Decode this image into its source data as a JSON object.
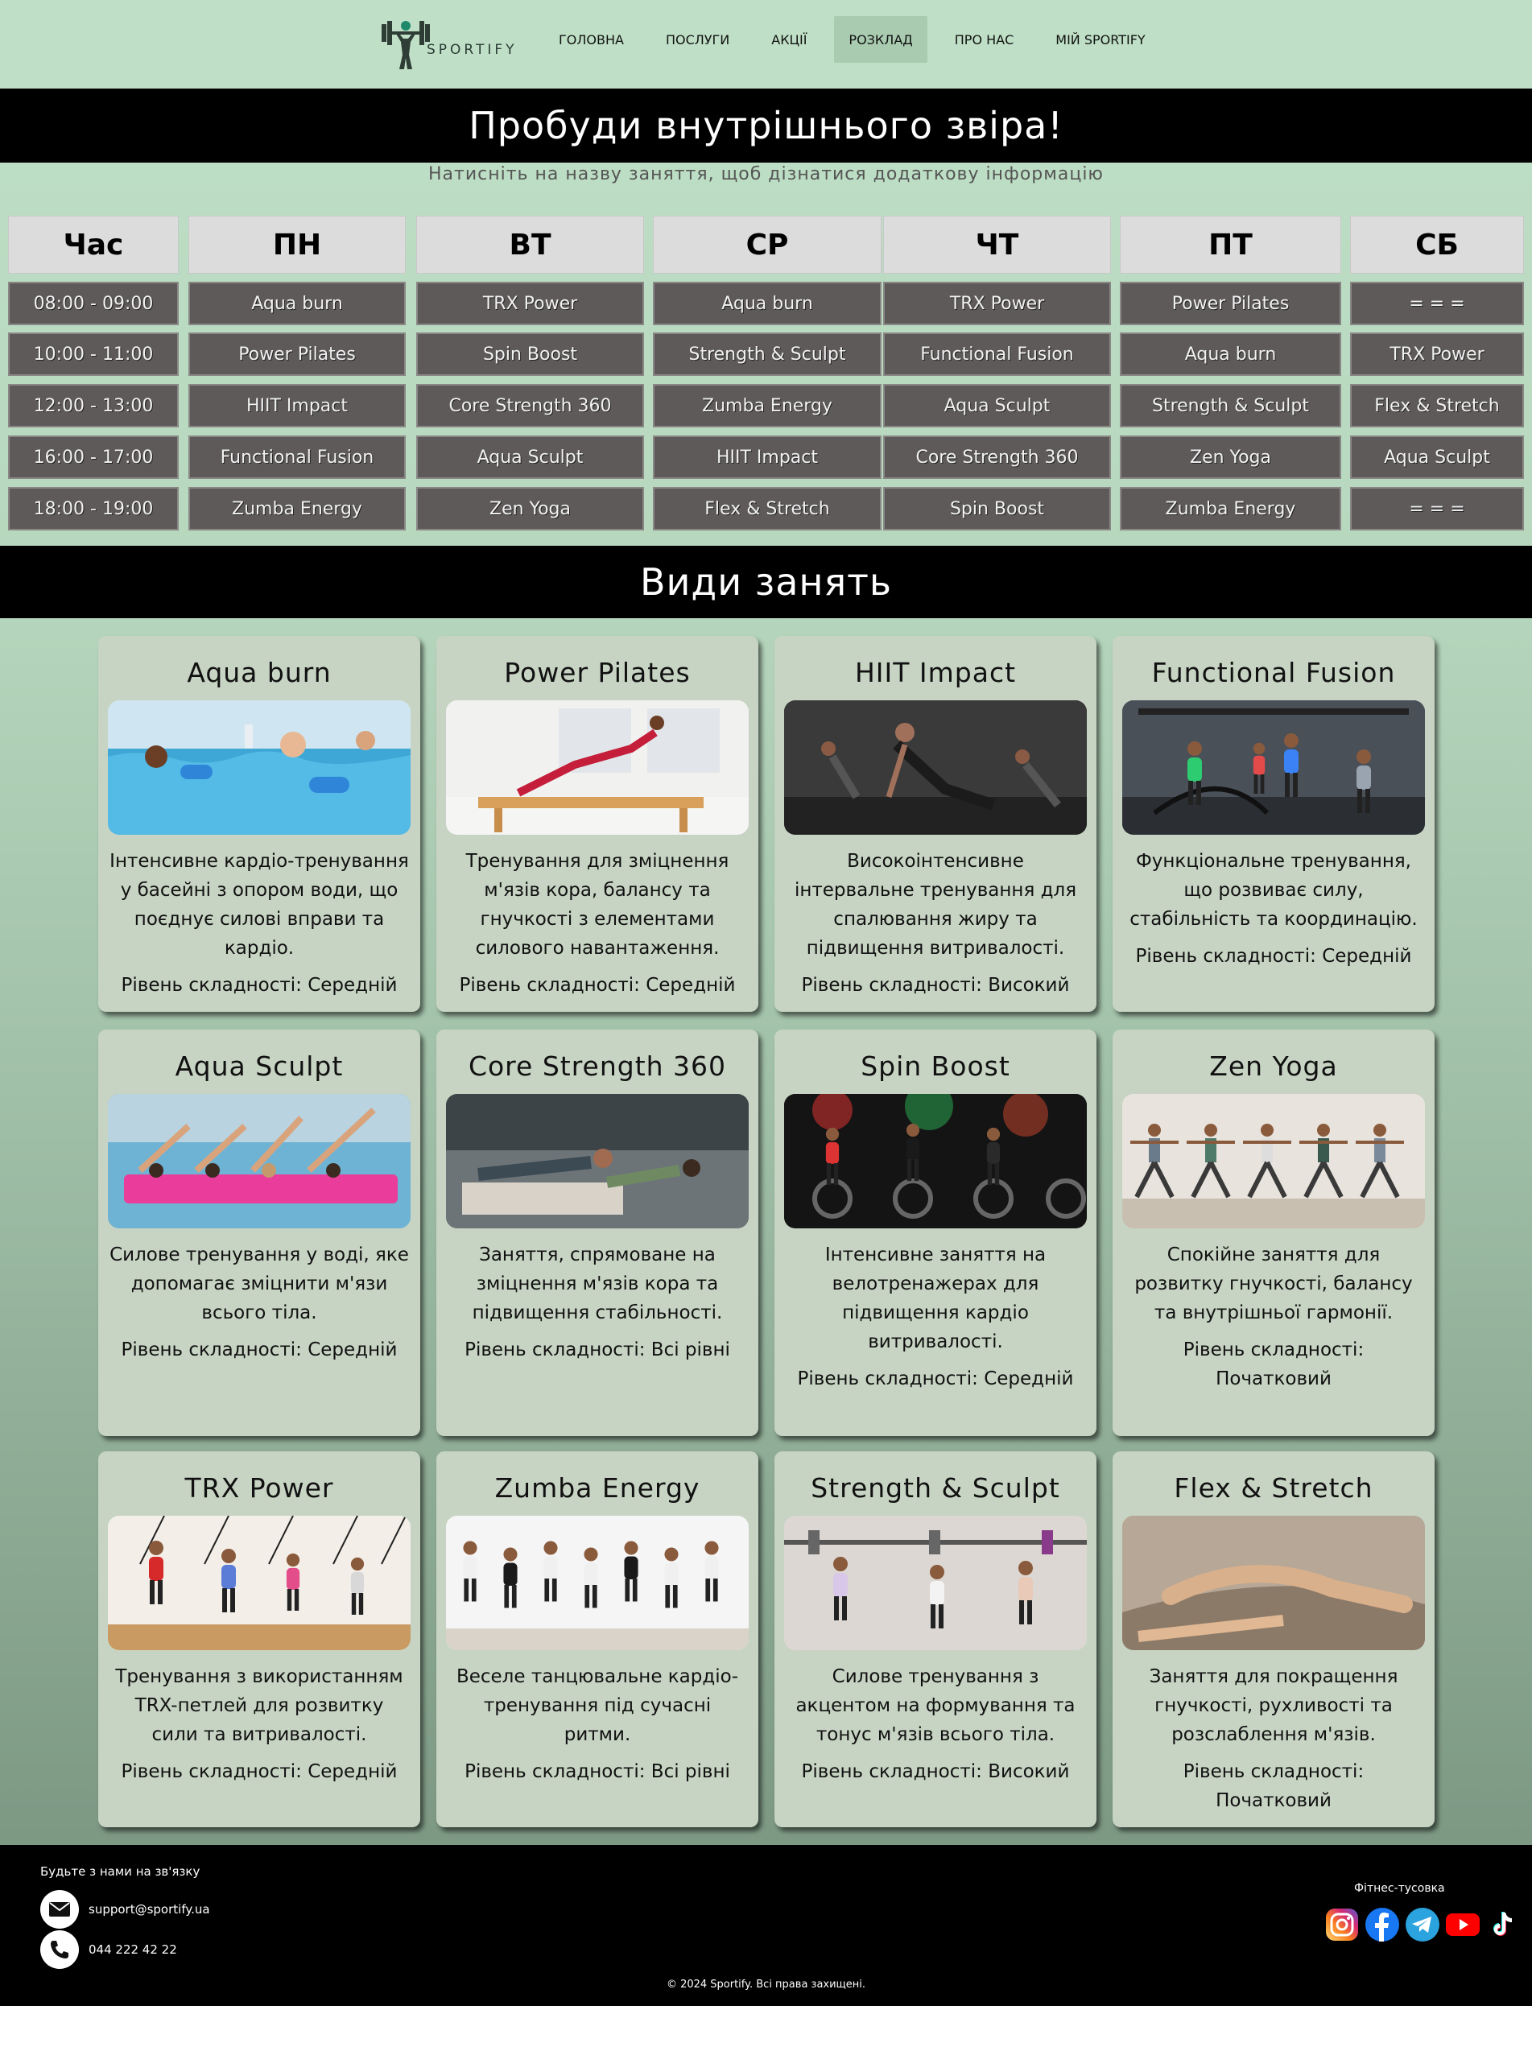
{
  "brand": {
    "name": "SPORTIFY"
  },
  "nav": {
    "items": [
      {
        "label": "ГОЛОВНА",
        "active": false
      },
      {
        "label": "ПОСЛУГИ",
        "active": false
      },
      {
        "label": "АКЦІЇ",
        "active": false
      },
      {
        "label": "РОЗКЛАД",
        "active": true
      },
      {
        "label": "ПРО НАС",
        "active": false
      },
      {
        "label": "МІЙ SPORTIFY",
        "active": false
      }
    ]
  },
  "hero": {
    "title": "Пробуди внутрішнього звіра!",
    "subtitle": "Натисніть на назву заняття, щоб дізнатися додаткову інформацію"
  },
  "schedule": {
    "headers": [
      "Час",
      "ПН",
      "ВТ",
      "СР",
      "ЧТ",
      "ПТ",
      "СБ"
    ],
    "rows": [
      [
        "08:00 - 09:00",
        "Aqua burn",
        "TRX Power",
        "Aqua burn",
        "TRX Power",
        "Power Pilates",
        "= = ="
      ],
      [
        "10:00 - 11:00",
        "Power Pilates",
        "Spin Boost",
        "Strength & Sculpt",
        "Functional Fusion",
        "Aqua burn",
        "TRX Power"
      ],
      [
        "12:00 - 13:00",
        "HIIT Impact",
        "Core Strength 360",
        "Zumba Energy",
        "Aqua Sculpt",
        "Strength & Sculpt",
        "Flex & Stretch"
      ],
      [
        "16:00 - 17:00",
        "Functional Fusion",
        "Aqua Sculpt",
        "HIIT Impact",
        "Core Strength 360",
        "Zen Yoga",
        "Aqua Sculpt"
      ],
      [
        "18:00 - 19:00",
        "Zumba Energy",
        "Zen Yoga",
        "Flex & Stretch",
        "Spin Boost",
        "Zumba Energy",
        "= = ="
      ]
    ]
  },
  "classes": {
    "title": "Види занять",
    "level_prefix": "Рівень складності: ",
    "cards": [
      {
        "title": "Aqua burn",
        "desc": "Інтенсивне кардіо-тренування у басейні з опором води, що поєднує силові вправи та кардіо.",
        "level": "Рівень складності: Середній",
        "img": "pool"
      },
      {
        "title": "Power Pilates",
        "desc": "Тренування для зміцнення м'язів кора, балансу та гнучкості з елементами силового навантаження.",
        "level": "Рівень складності: Середній",
        "img": "pilates"
      },
      {
        "title": "HIIT Impact",
        "desc": "Високоінтенсивне інтервальне тренування для спалювання жиру та підвищення витривалості.",
        "level": "Рівень складності: Високий",
        "img": "hiit"
      },
      {
        "title": "Functional Fusion",
        "desc": "Функціональне тренування, що розвиває силу, стабільність та координацію.",
        "level": "Рівень складності: Середній",
        "img": "functional"
      },
      {
        "title": "Aqua Sculpt",
        "desc": "Силове тренування у воді, яке допомагає зміцнити м'язи всього тіла.",
        "level": "Рівень складності: Середній",
        "img": "aquasculpt"
      },
      {
        "title": "Core Strength 360",
        "desc": "Заняття, спрямоване на зміцнення м'язів кора та підвищення стабільності.",
        "level": "Рівень складності: Всі рівні",
        "img": "core"
      },
      {
        "title": "Spin Boost",
        "desc": "Інтенсивне заняття на велотренажерах для підвищення кардіо витривалості.",
        "level": "Рівень складності: Середній",
        "img": "spin"
      },
      {
        "title": "Zen Yoga",
        "desc": "Спокійне заняття для розвитку гнучкості, балансу та внутрішньої гармонії.",
        "level": "Рівень складності: Початковий",
        "img": "yoga"
      },
      {
        "title": "TRX Power",
        "desc": "Тренування з використанням TRX-петлей для розвитку сили та витривалості.",
        "level": "Рівень складності: Середній",
        "img": "trx"
      },
      {
        "title": "Zumba Energy",
        "desc": "Веселе танцювальне кардіо-тренування під сучасні ритми.",
        "level": "Рівень складності: Всі рівні",
        "img": "zumba"
      },
      {
        "title": "Strength & Sculpt",
        "desc": "Силове тренування з акцентом на формування та тонус м'язів всього тіла.",
        "level": "Рівень складності: Високий",
        "img": "strength"
      },
      {
        "title": "Flex & Stretch",
        "desc": "Заняття для покращення гнучкості, рухливості та розслаблення м'язів.",
        "level": "Рівень складності: Початковий",
        "img": "stretch"
      }
    ]
  },
  "footer": {
    "contact_title": "Будьте з нами на зв'язку",
    "email": "support@sportify.ua",
    "phone": "044 222 42 22",
    "social_title": "Фітнес-тусовка",
    "socials": [
      "instagram-icon",
      "facebook-icon",
      "telegram-icon",
      "youtube-icon",
      "tiktok-icon"
    ],
    "copyright": "© 2024 Sportify. Всі права захищені."
  }
}
